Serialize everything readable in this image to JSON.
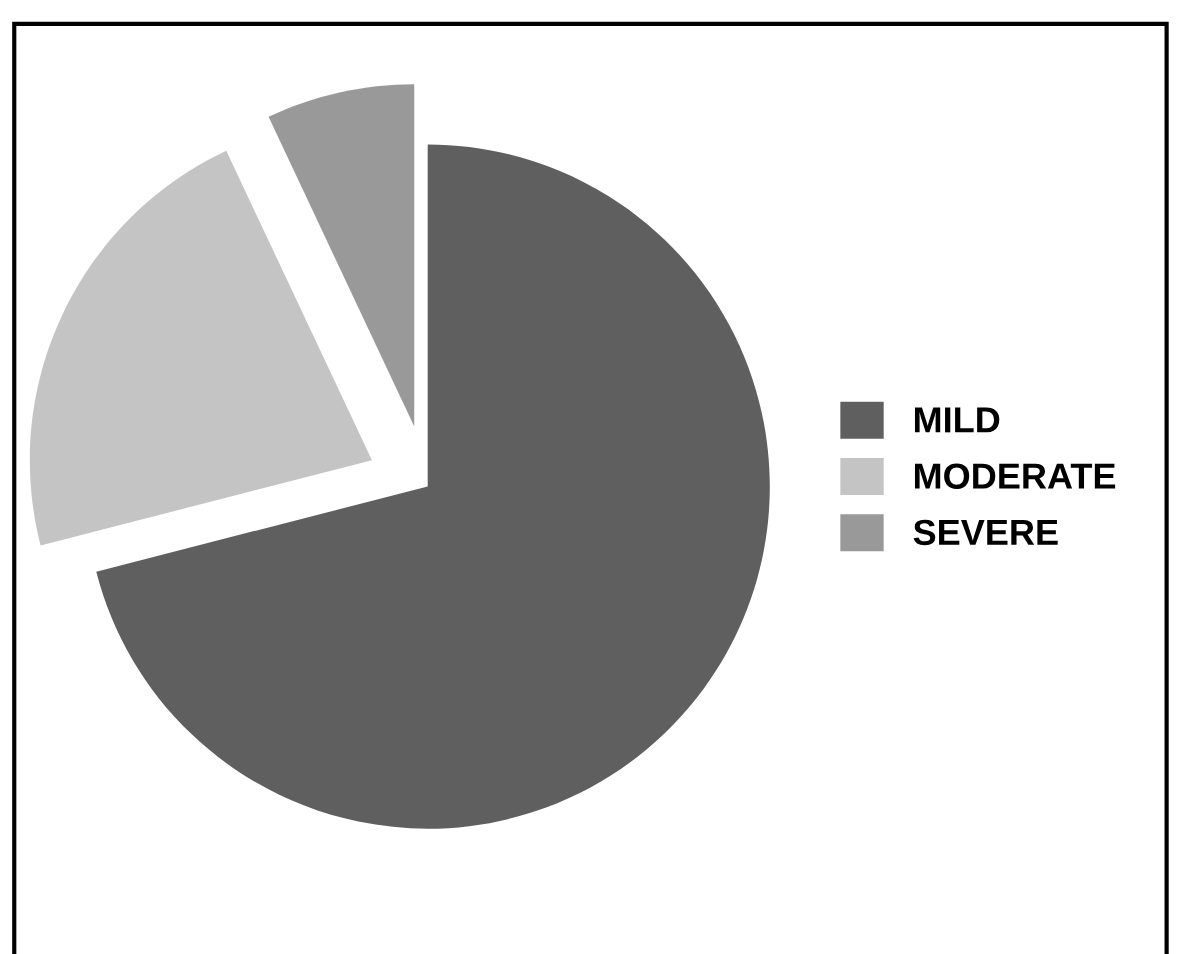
{
  "chart_data": {
    "type": "pie",
    "categories": [
      "MILD",
      "MODERATE",
      "SEVERE"
    ],
    "values": [
      71,
      22,
      7
    ],
    "colors": [
      "#5f5f5f",
      "#c4c4c4",
      "#999999"
    ],
    "legend": "right"
  }
}
